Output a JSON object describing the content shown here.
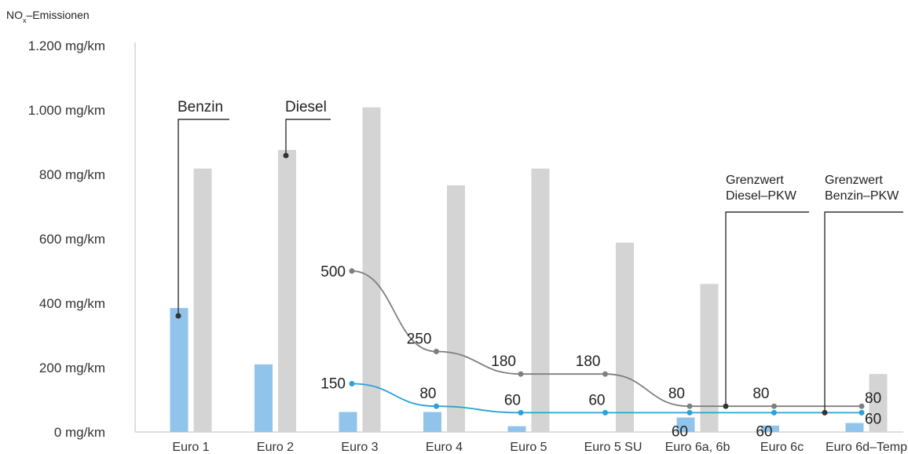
{
  "chart_data": {
    "type": "bar",
    "ylabel": {
      "main": "NO",
      "sub": "x",
      "rest": "–Emissionen"
    },
    "y_ticks": [
      "0 mg/km",
      "200 mg/km",
      "400 mg/km",
      "600 mg/km",
      "800 mg/km",
      "1.000 mg/km",
      "1.200 mg/km"
    ],
    "ylim": [
      0,
      1200
    ],
    "categories": [
      "Euro 1",
      "Euro 2",
      "Euro 3",
      "Euro 4",
      "Euro 5",
      "Euro 5 SU",
      "Euro 6a, 6b",
      "Euro 6c",
      "Euro 6d–Temp"
    ],
    "series": [
      {
        "name": "Benzin",
        "type": "bar",
        "color": "#90c4ea",
        "values": [
          385,
          210,
          62,
          62,
          18,
          null,
          45,
          20,
          28
        ]
      },
      {
        "name": "Diesel",
        "type": "bar",
        "color": "#d4d4d4",
        "values": [
          818,
          876,
          1008,
          766,
          818,
          588,
          460,
          null,
          180
        ]
      }
    ],
    "limits": [
      {
        "name": "Grenzwert Diesel–PKW",
        "type": "line",
        "color": "#7f7f7f",
        "values": [
          null,
          null,
          500,
          250,
          180,
          180,
          80,
          80,
          80
        ],
        "labels": [
          "",
          "",
          "500",
          "250",
          "180",
          "180",
          "80",
          "80",
          "80"
        ]
      },
      {
        "name": "Grenzwert Benzin–PKW",
        "type": "line",
        "color": "#2aa1d8",
        "values": [
          null,
          null,
          150,
          80,
          60,
          60,
          60,
          60,
          60
        ],
        "labels": [
          "",
          "",
          "150",
          "80",
          "60",
          "60",
          "60",
          "60",
          "60"
        ]
      }
    ],
    "annotations": {
      "benzin": "Benzin",
      "diesel": "Diesel",
      "grenzwert_diesel": [
        "Grenzwert",
        "Diesel–PKW"
      ],
      "grenzwert_benzin": [
        "Grenzwert",
        "Benzin–PKW"
      ]
    },
    "colors": {
      "axis": "#bfbfbf",
      "callout": "#333333"
    },
    "grid": false
  }
}
